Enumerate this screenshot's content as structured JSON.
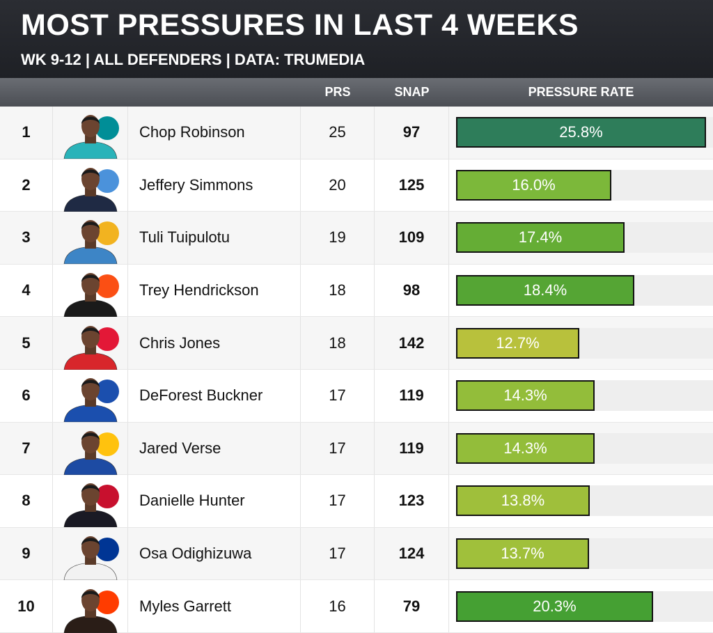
{
  "header": {
    "title": "MOST PRESSURES IN LAST 4 WEEKS",
    "subtitle": "WK 9-12 | ALL DEFENDERS | DATA: TRUMEDIA"
  },
  "columns": {
    "prs": "PRS",
    "snap": "SNAP",
    "pressure_rate": "PRESSURE RATE"
  },
  "chart_data": {
    "type": "table",
    "title": "MOST PRESSURES IN LAST 4 WEEKS",
    "subtitle": "WK 9-12 | ALL DEFENDERS | DATA: TRUMEDIA",
    "columns": [
      "PRS",
      "SNAP",
      "PRESSURE RATE"
    ],
    "bar_max": 26.5,
    "rows": [
      {
        "rank": "1",
        "name": "Chop Robinson",
        "prs": "25",
        "snap": "97",
        "rate": 25.8,
        "rate_label": "25.8%",
        "team_logo": "dolphins-logo-icon",
        "color": "#2e7d5a",
        "jersey": "#2ab3b9",
        "logo_color": "#008e97"
      },
      {
        "rank": "2",
        "name": "Jeffery Simmons",
        "prs": "20",
        "snap": "125",
        "rate": 16.0,
        "rate_label": "16.0%",
        "team_logo": "titans-logo-icon",
        "color": "#7cb83a",
        "jersey": "#1f2a44",
        "logo_color": "#4b92db"
      },
      {
        "rank": "3",
        "name": "Tuli Tuipulotu",
        "prs": "19",
        "snap": "109",
        "rate": 17.4,
        "rate_label": "17.4%",
        "team_logo": "chargers-logo-icon",
        "color": "#65ad35",
        "jersey": "#3d85c6",
        "logo_color": "#f2b320"
      },
      {
        "rank": "4",
        "name": "Trey Hendrickson",
        "prs": "18",
        "snap": "98",
        "rate": 18.4,
        "rate_label": "18.4%",
        "team_logo": "bengals-logo-icon",
        "color": "#55a534",
        "jersey": "#1a1a1a",
        "logo_color": "#fb4f14"
      },
      {
        "rank": "5",
        "name": "Chris Jones",
        "prs": "18",
        "snap": "142",
        "rate": 12.7,
        "rate_label": "12.7%",
        "team_logo": "chiefs-logo-icon",
        "color": "#b8c13c",
        "jersey": "#d8262b",
        "logo_color": "#e31837"
      },
      {
        "rank": "6",
        "name": "DeForest Buckner",
        "prs": "17",
        "snap": "119",
        "rate": 14.3,
        "rate_label": "14.3%",
        "team_logo": "colts-logo-icon",
        "color": "#93bd3a",
        "jersey": "#1b4fae",
        "logo_color": "#1b4fae"
      },
      {
        "rank": "7",
        "name": "Jared Verse",
        "prs": "17",
        "snap": "119",
        "rate": 14.3,
        "rate_label": "14.3%",
        "team_logo": "rams-logo-icon",
        "color": "#93bd3a",
        "jersey": "#1d4ba3",
        "logo_color": "#ffc20e"
      },
      {
        "rank": "8",
        "name": "Danielle Hunter",
        "prs": "17",
        "snap": "123",
        "rate": 13.8,
        "rate_label": "13.8%",
        "team_logo": "texans-logo-icon",
        "color": "#9fbf3b",
        "jersey": "#1a1a24",
        "logo_color": "#c8102e"
      },
      {
        "rank": "9",
        "name": "Osa Odighizuwa",
        "prs": "17",
        "snap": "124",
        "rate": 13.7,
        "rate_label": "13.7%",
        "team_logo": "cowboys-logo-icon",
        "color": "#a0c03b",
        "jersey": "#f2f2f2",
        "logo_color": "#003594"
      },
      {
        "rank": "10",
        "name": "Myles Garrett",
        "prs": "16",
        "snap": "79",
        "rate": 20.3,
        "rate_label": "20.3%",
        "team_logo": "browns-logo-icon",
        "color": "#45a033",
        "jersey": "#2a1d17",
        "logo_color": "#ff3c00"
      }
    ]
  }
}
